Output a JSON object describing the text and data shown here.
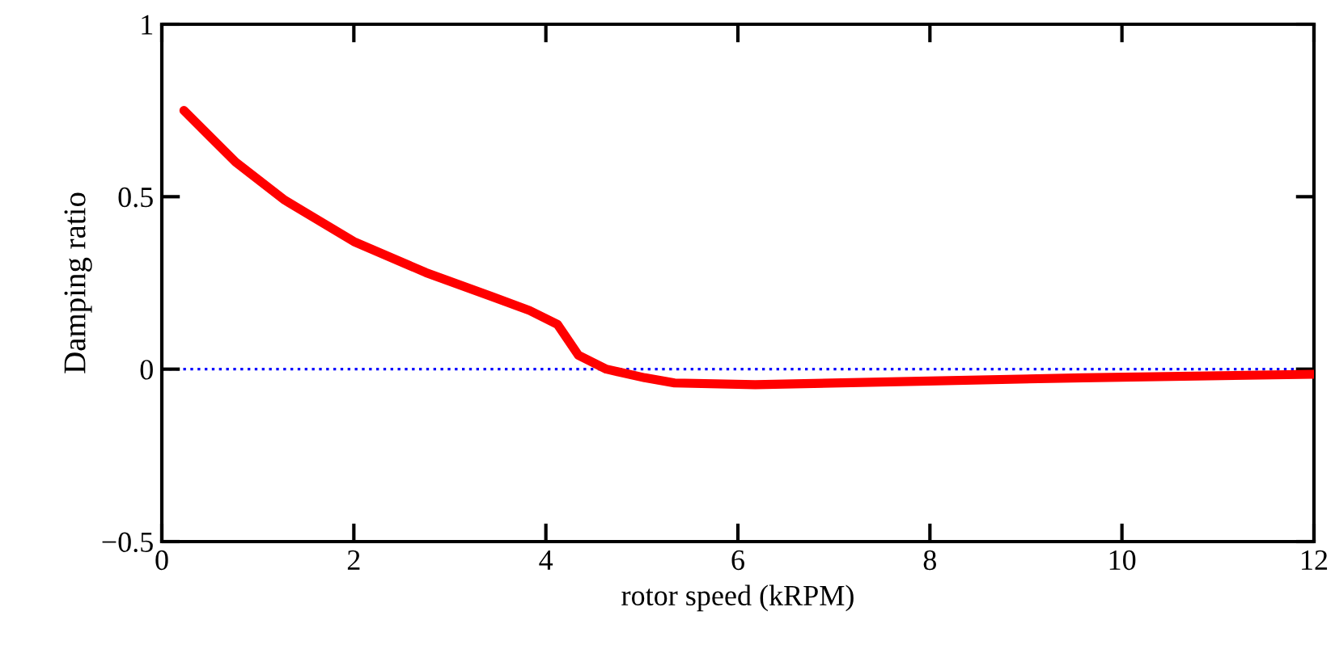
{
  "chart_data": {
    "type": "line",
    "xlabel": "rotor speed (kRPM)",
    "ylabel": "Damping ratio",
    "xlim": [
      0,
      12
    ],
    "xticks": [
      0,
      2,
      4,
      6,
      8,
      10,
      12
    ],
    "ylim": [
      -0.5,
      1
    ],
    "yticks": [
      {
        "value": -0.5,
        "label": "−0.5"
      },
      0,
      0.5,
      1
    ],
    "series": [
      {
        "color": "#ff0000",
        "x": [
          0.23,
          0.77,
          1.28,
          2,
          2.75,
          3.44,
          3.83,
          4.12,
          4.34,
          4.63,
          5.03,
          5.34,
          6.18,
          7.89,
          9.6,
          12
        ],
        "values": [
          0.75,
          0.6,
          0.49,
          0.37,
          0.28,
          0.21,
          0.17,
          0.13,
          0.04,
          0.0,
          -0.025,
          -0.04,
          -0.045,
          -0.035,
          -0.025,
          -0.015
        ]
      }
    ],
    "ref_lines": [
      {
        "axis": "y",
        "value": 0,
        "color": "#0000ff",
        "line_style": "dotted"
      }
    ],
    "grid": false,
    "legend": false,
    "line_style": "solid",
    "marker": "none"
  }
}
